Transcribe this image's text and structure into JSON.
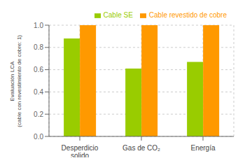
{
  "chart_data": {
    "type": "bar",
    "categories": [
      "Desperdicio\nsolido",
      "Gas de CO₂",
      "Energía"
    ],
    "series": [
      {
        "name": "Cable SE",
        "color": "#99cc00",
        "values": [
          0.88,
          0.61,
          0.67
        ]
      },
      {
        "name": "Cable revestido de cobre",
        "color": "#ff9900",
        "values": [
          1.0,
          1.0,
          1.0
        ]
      }
    ],
    "ylabel": "Evaluación LCA\n(cable con revestimiento de cobre: 1)",
    "ylim": [
      0,
      1.0
    ],
    "yticks": [
      {
        "value": 0,
        "label": "0.0"
      },
      0.2,
      0.4,
      0.6,
      0.8,
      {
        "value": 1,
        "label": "1.0"
      }
    ],
    "grid": true,
    "legend": "upper right"
  }
}
